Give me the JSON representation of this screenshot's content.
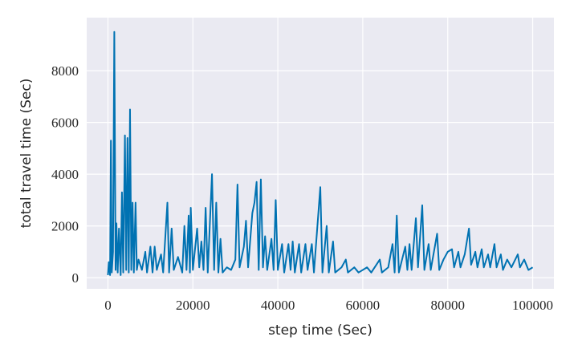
{
  "chart_data": {
    "type": "line",
    "xlabel": "step time (Sec)",
    "ylabel": "total travel time (Sec)",
    "color": "#0072b2",
    "grid": true,
    "xlim": [
      -5000,
      105000
    ],
    "ylim": [
      -430,
      10050
    ],
    "xticks": [
      0,
      20000,
      40000,
      60000,
      80000,
      100000
    ],
    "yticks": [
      0,
      2000,
      4000,
      6000,
      8000
    ],
    "x": [
      0,
      200,
      500,
      700,
      900,
      1200,
      1500,
      1800,
      2000,
      2300,
      2600,
      3000,
      3300,
      3600,
      4000,
      4300,
      4600,
      4900,
      5200,
      5500,
      5800,
      6100,
      6500,
      6800,
      7200,
      8000,
      8800,
      9200,
      10000,
      10500,
      11000,
      11500,
      12500,
      13000,
      14000,
      14400,
      15000,
      15500,
      16500,
      17500,
      18000,
      18500,
      19000,
      19300,
      19500,
      20000,
      21000,
      21500,
      22000,
      22500,
      23000,
      23500,
      24500,
      25000,
      25500,
      26000,
      26500,
      27000,
      28000,
      29000,
      30000,
      30500,
      31000,
      32000,
      32500,
      33000,
      34000,
      34500,
      35000,
      35500,
      36000,
      36500,
      37000,
      37500,
      38500,
      39000,
      39500,
      40000,
      41000,
      41500,
      42500,
      43000,
      43500,
      44000,
      45000,
      45500,
      46500,
      47000,
      48000,
      48500,
      50000,
      50500,
      51500,
      52000,
      53000,
      53500,
      55000,
      56000,
      56500,
      58000,
      59000,
      61000,
      62000,
      64000,
      64500,
      66000,
      67000,
      67500,
      68000,
      68500,
      70000,
      70500,
      71000,
      71500,
      72500,
      73000,
      74000,
      74500,
      75500,
      76000,
      77500,
      78000,
      79000,
      80000,
      81000,
      81500,
      82500,
      83000,
      84000,
      85000,
      85500,
      86500,
      87000,
      88000,
      88500,
      89500,
      90000,
      91000,
      91500,
      92500,
      93000,
      94000,
      95000,
      96500,
      97000,
      98000,
      99000,
      100000
    ],
    "values": [
      100,
      600,
      100,
      5300,
      200,
      1000,
      9500,
      300,
      2100,
      200,
      1900,
      100,
      3300,
      200,
      5500,
      300,
      5400,
      200,
      6500,
      300,
      2900,
      200,
      2900,
      300,
      700,
      300,
      1000,
      200,
      1200,
      200,
      1200,
      300,
      900,
      200,
      2900,
      200,
      1900,
      300,
      800,
      200,
      2000,
      300,
      2400,
      200,
      2700,
      300,
      1900,
      400,
      1400,
      300,
      2700,
      200,
      4000,
      300,
      2900,
      200,
      1500,
      200,
      400,
      300,
      700,
      3600,
      400,
      1200,
      2200,
      400,
      2500,
      2900,
      3700,
      300,
      3800,
      400,
      1600,
      300,
      1500,
      300,
      3000,
      300,
      1300,
      200,
      1300,
      300,
      1400,
      200,
      1300,
      200,
      1300,
      300,
      1300,
      200,
      3500,
      200,
      2000,
      200,
      1400,
      200,
      400,
      700,
      200,
      400,
      200,
      400,
      200,
      700,
      200,
      400,
      1300,
      200,
      2400,
      200,
      1200,
      300,
      1300,
      300,
      2300,
      400,
      2800,
      300,
      1300,
      300,
      1700,
      300,
      700,
      1000,
      1100,
      400,
      1000,
      400,
      900,
      1900,
      500,
      1000,
      400,
      1100,
      400,
      900,
      400,
      1300,
      400,
      900,
      300,
      700,
      400,
      900,
      400,
      700,
      300,
      400
    ]
  }
}
